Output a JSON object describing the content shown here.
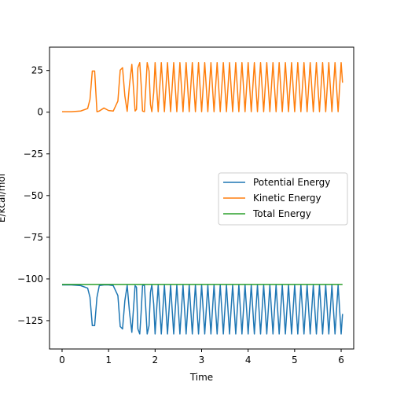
{
  "chart_data": {
    "type": "line",
    "xlabel": "Time",
    "ylabel": "E/kcal/mol",
    "xlim": [
      -0.27,
      6.27
    ],
    "ylim": [
      -142,
      39
    ],
    "xticks": [
      0,
      1,
      2,
      3,
      4,
      5,
      6
    ],
    "yticks": [
      25,
      0,
      -25,
      -50,
      -75,
      -100,
      -125
    ],
    "xtick_labels": [
      "0",
      "1",
      "2",
      "3",
      "4",
      "5",
      "6"
    ],
    "ytick_labels": [
      "25",
      "0",
      "−25",
      "−50",
      "−75",
      "−100",
      "−125"
    ],
    "grid": false,
    "legend_position": "center-right",
    "total_energy": -103.3,
    "series": [
      {
        "name": "Potential Energy",
        "color": "#1f77b4",
        "x": [
          0.0,
          0.2,
          0.4,
          0.55,
          0.6,
          0.65,
          0.7,
          0.75,
          0.8,
          0.9,
          1.0,
          1.1,
          1.2,
          1.25,
          1.3,
          1.35,
          1.4,
          1.45,
          1.5,
          1.53,
          1.57,
          1.6,
          1.63,
          1.67,
          1.7,
          1.73,
          1.77,
          1.8,
          1.83,
          1.87,
          1.9,
          1.93,
          1.97,
          2.0,
          6.0,
          6.03
        ],
        "y": [
          -103.6,
          -103.6,
          -104.0,
          -105.5,
          -111.0,
          -128.0,
          -128.0,
          -111.0,
          -104.0,
          -103.6,
          -103.6,
          -104.0,
          -110.0,
          -128.5,
          -130.0,
          -113.0,
          -103.8,
          -120.0,
          -132.0,
          -120.0,
          -104.0,
          -105.0,
          -130.0,
          -133.0,
          -120.0,
          -104.0,
          -103.6,
          -118.0,
          -133.0,
          -128.0,
          -108.0,
          -103.6,
          -115.0,
          -133.0,
          -133.0,
          -121.0
        ]
      },
      {
        "name": "Kinetic Energy",
        "color": "#ff7f0e",
        "x": [
          0.0,
          0.2,
          0.4,
          0.55,
          0.6,
          0.65,
          0.7,
          0.75,
          0.8,
          0.9,
          1.0,
          1.1,
          1.2,
          1.25,
          1.3,
          1.35,
          1.4,
          1.45,
          1.5,
          1.53,
          1.57,
          1.6,
          1.63,
          1.67,
          1.7,
          1.73,
          1.77,
          1.8,
          1.83,
          1.87,
          1.9,
          1.93,
          1.97,
          2.0,
          6.0,
          6.03
        ],
        "y": [
          0.3,
          0.3,
          0.7,
          2.2,
          7.7,
          24.7,
          24.7,
          0.3,
          0.7,
          2.5,
          1.0,
          0.7,
          6.7,
          25.2,
          26.7,
          9.7,
          0.5,
          16.7,
          28.7,
          16.7,
          0.7,
          1.7,
          26.7,
          29.7,
          16.7,
          0.7,
          0.3,
          14.7,
          29.7,
          24.7,
          4.7,
          0.3,
          11.7,
          29.7,
          29.7,
          17.7
        ]
      }
    ],
    "legend": [
      "Potential Energy",
      "Kinetic Energy",
      "Total Energy"
    ],
    "total_series": {
      "name": "Total Energy",
      "color": "#2ca02c",
      "x": [
        0.0,
        6.03
      ],
      "y": [
        -103.3,
        -103.3
      ]
    }
  }
}
